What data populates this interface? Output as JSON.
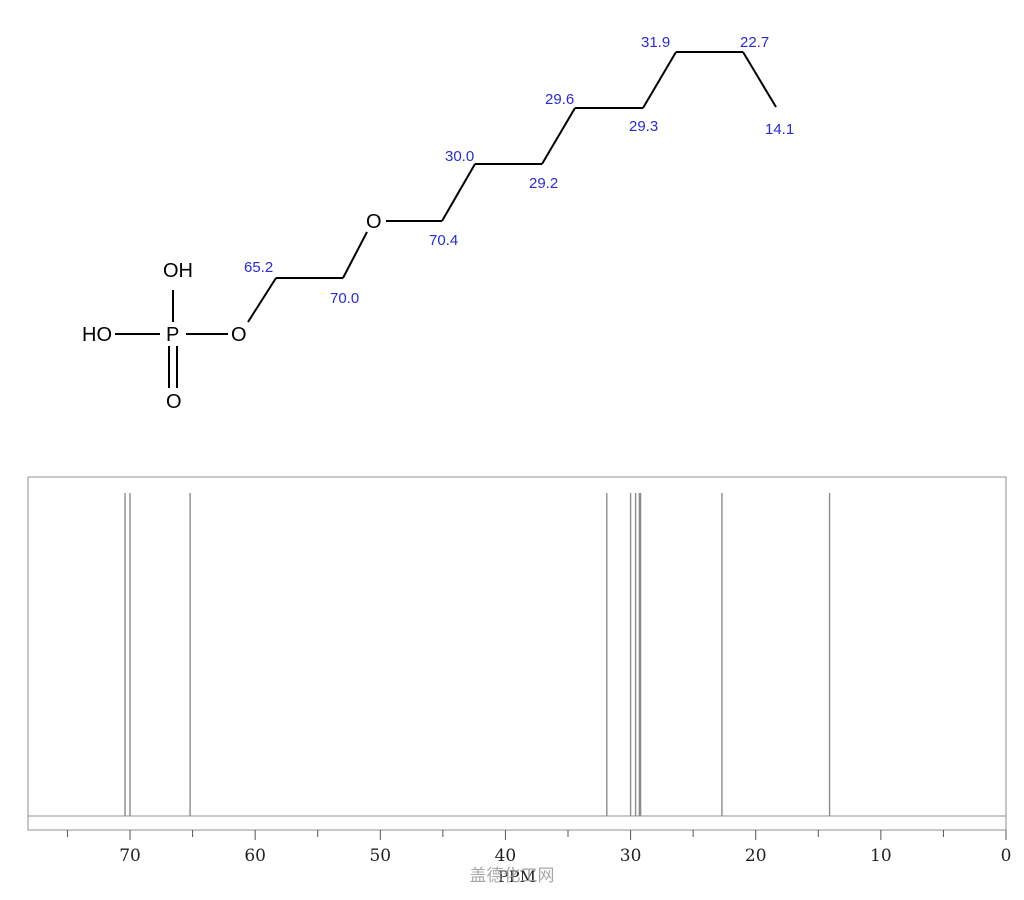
{
  "molecule": {
    "atoms": {
      "oh_top": "OH",
      "ho_left": "HO",
      "phosphorus": "P",
      "o_double": "O",
      "o_ester": "O",
      "o_ether": "O"
    },
    "shift_labels": {
      "c1": "65.2",
      "c2": "70.0",
      "c3": "70.4",
      "c4": "30.0",
      "c5": "29.2",
      "c6": "29.6",
      "c7": "29.3",
      "c8": "31.9",
      "c9": "22.7",
      "c10": "14.1"
    }
  },
  "chart_data": {
    "type": "spectrum",
    "xlabel": "PPM",
    "xlim": [
      78,
      0
    ],
    "x_reversed": true,
    "ticks": [
      "70",
      "60",
      "50",
      "40",
      "30",
      "20",
      "10",
      "0"
    ],
    "peaks": [
      70.4,
      70.0,
      65.2,
      31.9,
      30.0,
      29.6,
      29.3,
      29.2,
      22.7,
      14.1
    ],
    "colors": {
      "peak": "#8c8c8c",
      "frame": "#909090",
      "shift_label": "#2a2ad8"
    }
  },
  "watermark": "盖德化工网"
}
